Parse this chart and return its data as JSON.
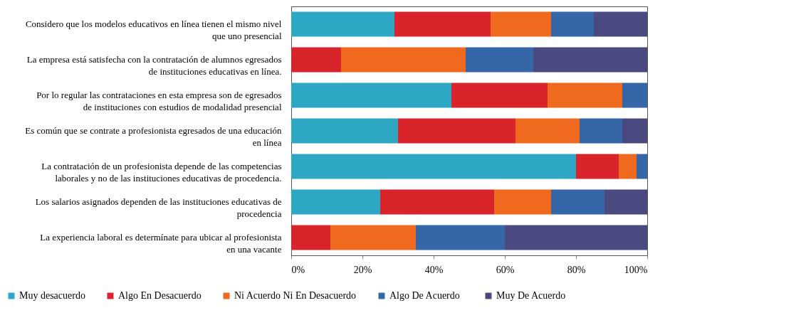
{
  "chart_data": {
    "type": "bar",
    "orientation": "horizontal",
    "stacked": true,
    "legend": "bottom",
    "grid": false,
    "categories": [
      "Considero que los modelos educativos en línea tienen el mismo nivel que uno presencial",
      "La empresa está satisfecha con la contratación de alumnos egresados de instituciones educativas en línea.",
      "Por lo regular las contrataciones en esta empresa son de egresados de instituciones con estudios de modalidad presencial",
      "Es común que se contrate a profesionista egresados de una educación en línea",
      "La contratación de un profesionista depende de las competencias laborales y no de las instituciones educativas de procedencia.",
      "Los  salarios asignados dependen de las instituciones educativas de procedencia",
      "La experiencia  laboral es determínate para ubicar al profesionista en una vacante"
    ],
    "xlim": [
      0,
      100
    ],
    "xticks": [
      {
        "value": 0,
        "label": "0%"
      },
      {
        "value": 20,
        "label": "20%"
      },
      {
        "value": 40,
        "label": "40%"
      },
      {
        "value": 60,
        "label": "60%"
      },
      {
        "value": 80,
        "label": "80%"
      },
      {
        "value": 100,
        "label": "100%"
      }
    ],
    "series": [
      {
        "name": "Muy desacuerdo",
        "color": "#2ea7c4",
        "values": [
          29,
          null,
          45,
          30,
          80,
          25,
          null
        ]
      },
      {
        "name": "Algo En Desacuerdo",
        "color": "#d9242b",
        "values": [
          27,
          14,
          27,
          33,
          12,
          32,
          11
        ]
      },
      {
        "name": "Ni Acuerdo Ni En Desacuerdo",
        "color": "#ef6a1e",
        "values": [
          17,
          35,
          21,
          18,
          5,
          16,
          24
        ]
      },
      {
        "name": "Algo  De Acuerdo",
        "color": "#3466a8",
        "values": [
          12,
          19,
          7,
          12,
          3,
          15,
          25
        ]
      },
      {
        "name": "Muy De Acuerdo",
        "color": "#4a4a80",
        "values": [
          15,
          32,
          null,
          7,
          null,
          12,
          40
        ]
      }
    ]
  }
}
